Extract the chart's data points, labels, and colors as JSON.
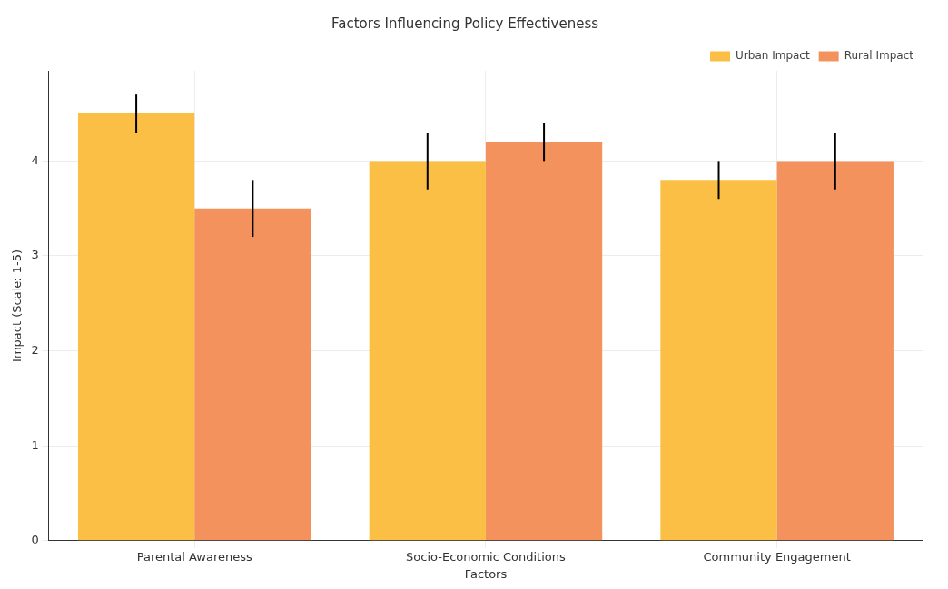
{
  "chart_data": {
    "type": "bar",
    "title": "Factors Influencing Policy Effectiveness",
    "xlabel": "Factors",
    "ylabel": "Impact (Scale: 1-5)",
    "categories": [
      "Parental Awareness",
      "Socio-Economic Conditions",
      "Community Engagement"
    ],
    "series": [
      {
        "name": "Urban Impact",
        "color": "#fbbf45",
        "values": [
          4.5,
          4.0,
          3.8
        ],
        "errors": [
          0.2,
          0.3,
          0.2
        ]
      },
      {
        "name": "Rural Impact",
        "color": "#f4925e",
        "values": [
          3.5,
          4.2,
          4.0
        ],
        "errors": [
          0.3,
          0.2,
          0.3
        ]
      }
    ],
    "ylim": [
      0,
      4.95
    ],
    "yticks": [
      0,
      1,
      2,
      3,
      4
    ],
    "grid": true,
    "legend": "top right"
  }
}
